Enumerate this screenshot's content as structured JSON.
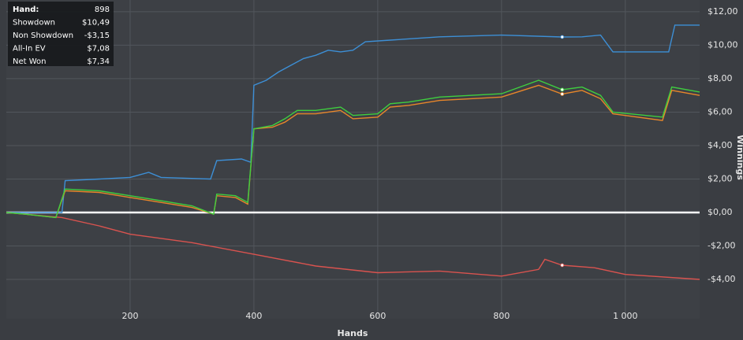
{
  "chart_data": {
    "type": "line",
    "xlabel": "Hands",
    "ylabel": "Winnings",
    "xlim": [
      0,
      1120
    ],
    "xticks": [
      200,
      400,
      600,
      800,
      {
        "value": 1000,
        "label": "1 000"
      }
    ],
    "ylim": [
      -6.35,
      12.7
    ],
    "yticks": [
      {
        "value": -4,
        "label": "-$4,00"
      },
      {
        "value": -2,
        "label": "-$2,00"
      },
      {
        "value": 0,
        "label": "$0,00"
      },
      {
        "value": 2,
        "label": "$2,00"
      },
      {
        "value": 4,
        "label": "$4,00"
      },
      {
        "value": 6,
        "label": "$6,00"
      },
      {
        "value": 8,
        "label": "$8,00"
      },
      {
        "value": 10,
        "label": "$10,00"
      },
      {
        "value": 12,
        "label": "$12,00"
      }
    ],
    "grid": true,
    "zero_line_color": "#ffffff",
    "tooltip": {
      "rows": [
        {
          "label": "Hand:",
          "value": "898"
        },
        {
          "label": "Showdown",
          "value": "$10,49"
        },
        {
          "label": "Non Showdown",
          "value": "-$3,15"
        },
        {
          "label": "All-In EV",
          "value": "$7,08"
        },
        {
          "label": "Net Won",
          "value": "$7,34"
        }
      ]
    },
    "highlight_x": 898,
    "series": [
      {
        "name": "Showdown",
        "color": "#3d8fd6",
        "x": [
          0,
          90,
          95,
          150,
          200,
          230,
          250,
          330,
          340,
          380,
          395,
          400,
          420,
          440,
          460,
          480,
          500,
          520,
          540,
          560,
          580,
          620,
          700,
          800,
          898,
          930,
          960,
          980,
          1070,
          1080,
          1120
        ],
        "values": [
          0,
          0,
          1.9,
          2.0,
          2.1,
          2.4,
          2.1,
          2.0,
          3.1,
          3.2,
          3.0,
          7.6,
          7.9,
          8.4,
          8.8,
          9.2,
          9.4,
          9.7,
          9.6,
          9.7,
          10.2,
          10.3,
          10.5,
          10.6,
          10.49,
          10.5,
          10.6,
          9.6,
          9.6,
          11.2,
          11.2
        ]
      },
      {
        "name": "Non Showdown",
        "color": "#d9534f",
        "x": [
          0,
          90,
          150,
          200,
          300,
          400,
          500,
          600,
          700,
          800,
          860,
          870,
          898,
          950,
          1000,
          1120
        ],
        "values": [
          0,
          -0.3,
          -0.8,
          -1.3,
          -1.8,
          -2.5,
          -3.2,
          -3.6,
          -3.5,
          -3.8,
          -3.4,
          -2.8,
          -3.15,
          -3.3,
          -3.7,
          -4.0
        ]
      },
      {
        "name": "All-In EV",
        "color": "#e8862a",
        "x": [
          0,
          30,
          80,
          95,
          150,
          200,
          250,
          300,
          335,
          340,
          370,
          390,
          400,
          430,
          450,
          470,
          500,
          540,
          560,
          600,
          620,
          650,
          700,
          800,
          860,
          898,
          930,
          960,
          980,
          1060,
          1075,
          1120
        ],
        "values": [
          0,
          -0.1,
          -0.3,
          1.3,
          1.2,
          0.9,
          0.6,
          0.3,
          -0.1,
          1.0,
          0.9,
          0.5,
          5.0,
          5.1,
          5.4,
          5.9,
          5.9,
          6.1,
          5.6,
          5.7,
          6.3,
          6.4,
          6.7,
          6.9,
          7.6,
          7.08,
          7.3,
          6.8,
          5.9,
          5.5,
          7.3,
          7.0
        ]
      },
      {
        "name": "Net Won",
        "color": "#3fcf3f",
        "x": [
          0,
          30,
          80,
          95,
          150,
          200,
          250,
          300,
          335,
          340,
          370,
          390,
          400,
          430,
          450,
          470,
          500,
          540,
          560,
          600,
          620,
          650,
          700,
          800,
          860,
          898,
          930,
          960,
          980,
          1060,
          1075,
          1120
        ],
        "values": [
          0,
          -0.1,
          -0.3,
          1.4,
          1.3,
          1.0,
          0.7,
          0.4,
          -0.1,
          1.1,
          1.0,
          0.6,
          5.0,
          5.2,
          5.6,
          6.1,
          6.1,
          6.3,
          5.8,
          5.9,
          6.5,
          6.6,
          6.9,
          7.1,
          7.9,
          7.34,
          7.5,
          7.0,
          6.0,
          5.7,
          7.5,
          7.2
        ]
      }
    ]
  }
}
